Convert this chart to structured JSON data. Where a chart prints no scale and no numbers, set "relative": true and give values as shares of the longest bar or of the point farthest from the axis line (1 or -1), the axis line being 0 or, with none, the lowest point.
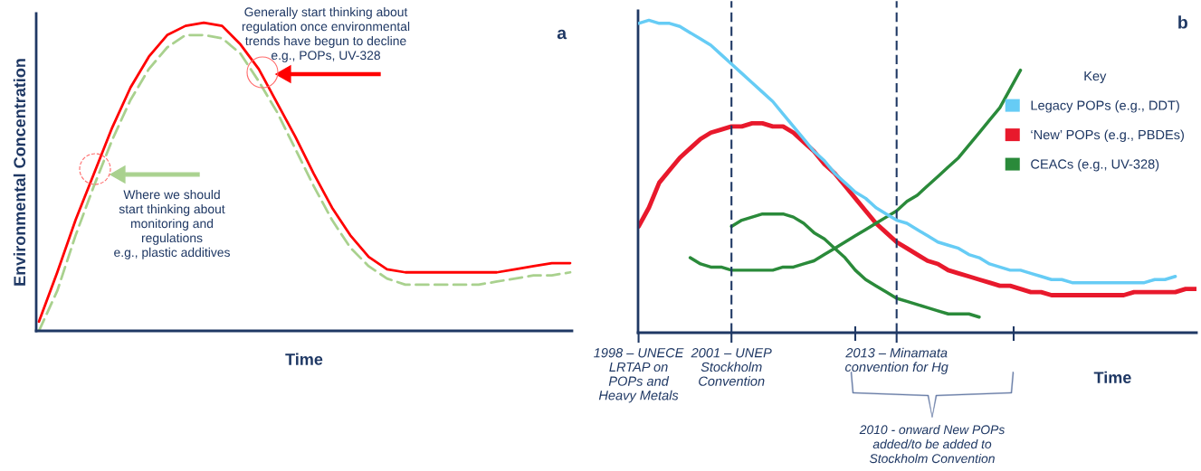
{
  "chart_data": [
    {
      "type": "line",
      "title": "a",
      "xlabel": "Time",
      "ylabel": "Environmental Concentration",
      "relative": true,
      "tick_labels": false,
      "grid": false,
      "legend": false,
      "categories": [
        null,
        null,
        null,
        null,
        null,
        null,
        null,
        null,
        null,
        null,
        null,
        null,
        null,
        null,
        null,
        null,
        null,
        null,
        null,
        null,
        null,
        null,
        null,
        null,
        null,
        null,
        null,
        null,
        null,
        null
      ],
      "series": [
        {
          "color": "#ff0000",
          "line_style": "solid",
          "values": [
            0.03,
            0.19,
            0.36,
            0.51,
            0.66,
            0.79,
            0.89,
            0.96,
            0.99,
            1.0,
            0.99,
            0.93,
            0.85,
            0.74,
            0.63,
            0.51,
            0.4,
            0.31,
            0.24,
            0.2,
            0.19,
            0.19,
            0.19,
            0.19,
            0.19,
            0.19,
            0.2,
            0.21,
            0.22,
            0.22
          ]
        },
        {
          "color": "#a9d18e",
          "line_style": "dashed",
          "values": [
            0.0,
            0.13,
            0.31,
            0.47,
            0.62,
            0.75,
            0.85,
            0.92,
            0.96,
            0.96,
            0.95,
            0.9,
            0.81,
            0.71,
            0.59,
            0.47,
            0.36,
            0.27,
            0.21,
            0.17,
            0.15,
            0.15,
            0.15,
            0.15,
            0.15,
            0.16,
            0.17,
            0.18,
            0.18,
            0.19
          ]
        }
      ],
      "annotations": [
        "Generally start thinking about\nregulation once environmental\ntrends have begun to decline\ne.g., POPs, UV-328",
        "Where we should\nstart thinking about\nmonitoring and\nregulations\ne.g., plastic additives"
      ]
    },
    {
      "type": "line",
      "title": "b",
      "xlabel": "Time",
      "relative": true,
      "tick_labels": "x",
      "grid": false,
      "legend": "top right",
      "legend_title": "Key",
      "categories": [
        "1998 – UNECE\nLRTAP on\nPOPs and\nHeavy Metals",
        null,
        null,
        null,
        null,
        null,
        null,
        null,
        null,
        "2001 – UNEP\nStockholm\nConvention",
        null,
        null,
        null,
        null,
        null,
        null,
        null,
        null,
        null,
        null,
        null,
        null,
        null,
        null,
        null,
        "2013 – Minamata\nconvention for Hg",
        null,
        null,
        null,
        null,
        null,
        null,
        null,
        null,
        null,
        null,
        null,
        null,
        null,
        null,
        null,
        null,
        null,
        null,
        null,
        null,
        null,
        null,
        null,
        null,
        null,
        null,
        null,
        null,
        null
      ],
      "series": [
        {
          "name": "Legacy POPs (e.g., DDT)",
          "color": "#66ccf5",
          "values": [
            0.99,
            1.0,
            0.99,
            0.99,
            0.98,
            0.96,
            0.94,
            0.92,
            0.89,
            0.86,
            0.83,
            0.8,
            0.77,
            0.74,
            0.7,
            0.66,
            0.62,
            0.58,
            0.55,
            0.51,
            0.48,
            0.45,
            0.43,
            0.4,
            0.38,
            0.36,
            0.35,
            0.33,
            0.31,
            0.29,
            0.28,
            0.27,
            0.25,
            0.24,
            0.22,
            0.21,
            0.2,
            0.2,
            0.19,
            0.18,
            0.17,
            0.17,
            0.16,
            0.16,
            0.16,
            0.16,
            0.16,
            0.16,
            0.16,
            0.16,
            0.17,
            0.17,
            0.18,
            null,
            null
          ]
        },
        {
          "name": "‘New’ POPs (e.g., PBDEs)",
          "color": "#e8192c",
          "values": [
            0.34,
            0.4,
            0.48,
            0.52,
            0.56,
            0.59,
            0.62,
            0.64,
            0.65,
            0.66,
            0.66,
            0.67,
            0.67,
            0.66,
            0.66,
            0.64,
            0.61,
            0.58,
            0.54,
            0.51,
            0.47,
            0.43,
            0.39,
            0.35,
            0.32,
            0.29,
            0.27,
            0.25,
            0.23,
            0.22,
            0.2,
            0.19,
            0.18,
            0.17,
            0.16,
            0.15,
            0.15,
            0.14,
            0.13,
            0.13,
            0.12,
            0.12,
            0.12,
            0.12,
            0.12,
            0.12,
            0.12,
            0.12,
            0.13,
            0.13,
            0.13,
            0.13,
            0.13,
            0.14,
            0.14
          ]
        },
        {
          "name": "CEACs (e.g., UV-328)",
          "color": "#2a8a3a",
          "values": [
            null,
            null,
            null,
            null,
            null,
            0.24,
            0.22,
            0.21,
            0.21,
            0.2,
            0.2,
            0.2,
            0.2,
            0.2,
            0.21,
            0.21,
            0.22,
            0.23,
            0.25,
            0.27,
            0.29,
            0.31,
            0.33,
            0.35,
            0.37,
            0.39,
            0.42,
            0.44,
            0.47,
            0.5,
            0.53,
            0.56,
            0.6,
            0.64,
            0.68,
            0.72,
            0.78,
            0.84,
            null,
            null,
            null,
            null,
            null,
            null,
            null,
            null,
            null,
            null,
            null,
            null,
            null,
            null,
            null,
            null,
            null
          ]
        },
        {
          "color": "#2a8a3a",
          "values": [
            null,
            null,
            null,
            null,
            null,
            null,
            null,
            null,
            null,
            0.34,
            0.36,
            0.37,
            0.38,
            0.38,
            0.38,
            0.37,
            0.35,
            0.32,
            0.3,
            0.27,
            0.24,
            0.2,
            0.17,
            0.15,
            0.13,
            0.11,
            0.1,
            0.09,
            0.08,
            0.07,
            0.06,
            0.06,
            0.06,
            0.05,
            null,
            null,
            null,
            null,
            null,
            null,
            null,
            null,
            null,
            null,
            null,
            null,
            null,
            null,
            null,
            null,
            null,
            null,
            null,
            null,
            null
          ]
        }
      ],
      "ref_lines": [
        {
          "axis": "x",
          "value": "2001 – UNEP\nStockholm\nConvention",
          "color": "#1f3864",
          "line_style": "dashed"
        },
        {
          "axis": "x",
          "value": "2013 – Minamata\nconvention for Hg",
          "color": "#1f3864",
          "line_style": "dashed"
        }
      ],
      "annotations": [
        "2010 - onward New POPs\nadded/to be added to\nStockholm Convention"
      ]
    }
  ]
}
